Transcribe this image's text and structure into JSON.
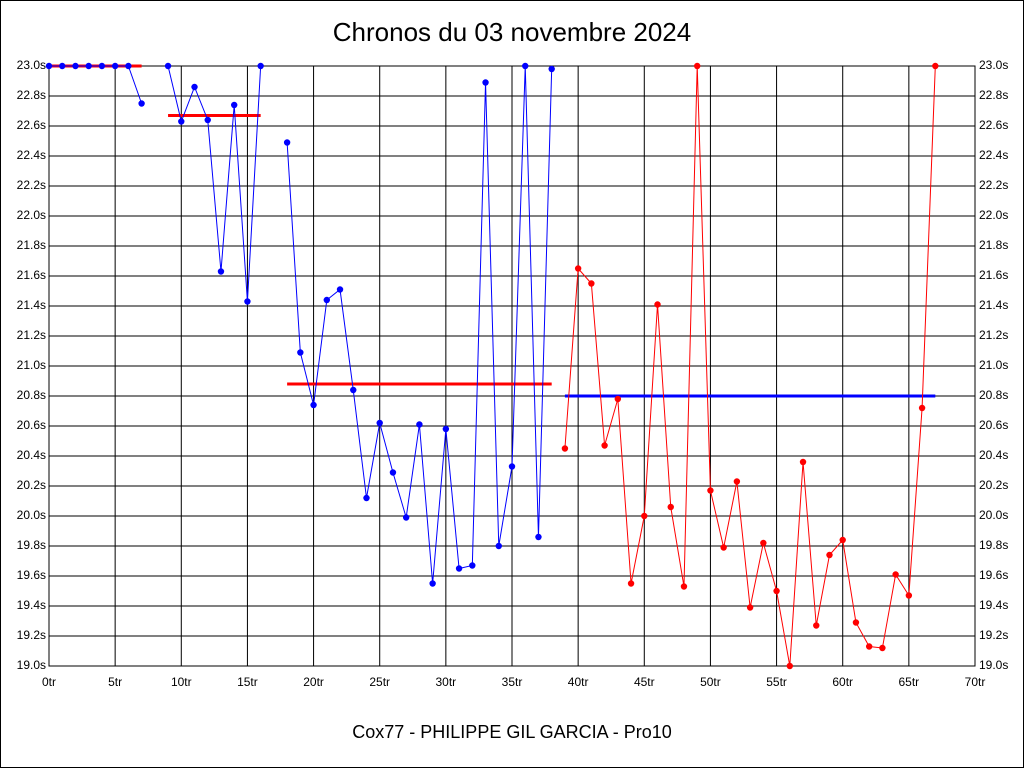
{
  "chart_data": {
    "type": "line",
    "title": "Chronos du 03 novembre 2024",
    "x_label": "Cox77 - PHILIPPE GIL GARCIA - Pro10",
    "xlim": [
      0,
      70
    ],
    "xticks": [
      {
        "value": 0,
        "label": "0tr"
      },
      {
        "value": 5,
        "label": "5tr"
      },
      {
        "value": 10,
        "label": "10tr"
      },
      {
        "value": 15,
        "label": "15tr"
      },
      {
        "value": 20,
        "label": "20tr"
      },
      {
        "value": 25,
        "label": "25tr"
      },
      {
        "value": 30,
        "label": "30tr"
      },
      {
        "value": 35,
        "label": "35tr"
      },
      {
        "value": 40,
        "label": "40tr"
      },
      {
        "value": 45,
        "label": "45tr"
      },
      {
        "value": 50,
        "label": "50tr"
      },
      {
        "value": 55,
        "label": "55tr"
      },
      {
        "value": 60,
        "label": "60tr"
      },
      {
        "value": 65,
        "label": "65tr"
      },
      {
        "value": 70,
        "label": "70tr"
      }
    ],
    "ylim": [
      19,
      23
    ],
    "yticks": [
      {
        "value": 19,
        "label": "19.0s"
      },
      {
        "value": 19.2,
        "label": "19.2s"
      },
      {
        "value": 19.4,
        "label": "19.4s"
      },
      {
        "value": 19.6,
        "label": "19.6s"
      },
      {
        "value": 19.8,
        "label": "19.8s"
      },
      {
        "value": 20,
        "label": "20.0s"
      },
      {
        "value": 20.2,
        "label": "20.2s"
      },
      {
        "value": 20.4,
        "label": "20.4s"
      },
      {
        "value": 20.6,
        "label": "20.6s"
      },
      {
        "value": 20.8,
        "label": "20.8s"
      },
      {
        "value": 21,
        "label": "21.0s"
      },
      {
        "value": 21.2,
        "label": "21.2s"
      },
      {
        "value": 21.4,
        "label": "21.4s"
      },
      {
        "value": 21.6,
        "label": "21.6s"
      },
      {
        "value": 21.8,
        "label": "21.8s"
      },
      {
        "value": 22,
        "label": "22.0s"
      },
      {
        "value": 22.2,
        "label": "22.2s"
      },
      {
        "value": 22.4,
        "label": "22.4s"
      },
      {
        "value": 22.6,
        "label": "22.6s"
      },
      {
        "value": 22.8,
        "label": "22.8s"
      },
      {
        "value": 23,
        "label": "23.0s"
      }
    ],
    "grid": true,
    "series": [
      {
        "color": "#0000ff",
        "x": [
          0,
          1,
          2,
          3,
          4,
          5,
          6,
          7,
          8,
          9,
          10,
          11,
          12,
          13,
          14,
          15,
          16,
          17,
          18,
          19,
          20,
          21,
          22,
          23,
          24,
          25,
          26,
          27,
          28,
          29,
          30,
          31,
          32,
          33,
          34,
          35,
          36,
          37,
          38
        ],
        "values": [
          23.0,
          23.0,
          23.0,
          23.0,
          23.0,
          23.0,
          23.0,
          22.75,
          null,
          23.0,
          22.63,
          22.86,
          22.64,
          21.63,
          22.74,
          21.43,
          23.0,
          null,
          22.49,
          21.09,
          20.74,
          21.44,
          21.51,
          20.84,
          20.12,
          20.62,
          20.29,
          19.99,
          20.61,
          19.55,
          20.58,
          19.65,
          19.67,
          22.89,
          19.8,
          20.33,
          23.0,
          19.86,
          22.98
        ]
      },
      {
        "color": "#ff0000",
        "x": [
          39,
          40,
          41,
          42,
          43,
          44,
          45,
          46,
          47,
          48,
          49,
          50,
          51,
          52,
          53,
          54,
          55,
          56,
          57,
          58,
          59,
          60,
          61,
          62,
          63,
          64,
          65,
          66,
          67
        ],
        "values": [
          20.45,
          21.65,
          21.55,
          20.47,
          20.78,
          19.55,
          20.0,
          21.41,
          20.06,
          19.53,
          23.0,
          20.17,
          19.79,
          20.23,
          19.39,
          19.82,
          19.5,
          19.0,
          20.36,
          19.27,
          19.74,
          19.84,
          19.29,
          19.13,
          19.12,
          19.61,
          19.47,
          20.72,
          23.0
        ]
      }
    ],
    "reference_lines": [
      {
        "color": "#ff0000",
        "x": [
          0,
          7
        ],
        "value": 23.0
      },
      {
        "color": "#ff0000",
        "x": [
          9,
          16
        ],
        "value": 22.67
      },
      {
        "color": "#ff0000",
        "x": [
          18,
          38
        ],
        "value": 20.88
      },
      {
        "color": "#0000ff",
        "x": [
          39,
          67
        ],
        "value": 20.8
      }
    ]
  }
}
